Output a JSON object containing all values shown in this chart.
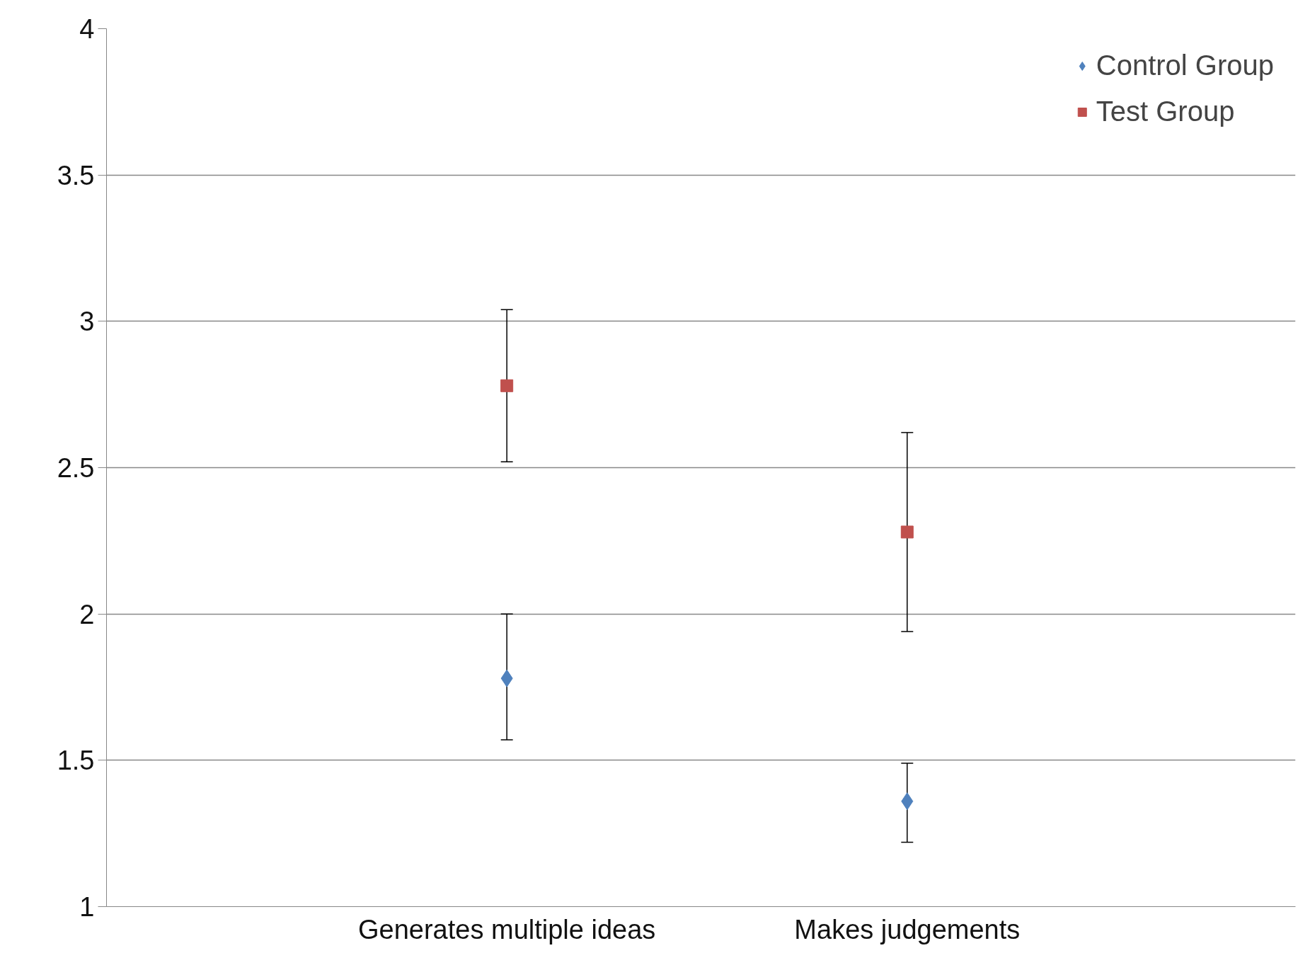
{
  "chart_data": {
    "type": "scatter",
    "categories": [
      "Generates multiple ideas",
      "Makes judgements"
    ],
    "series": [
      {
        "name": "Control Group",
        "color": "#4f81bd",
        "marker": "diamond",
        "values": [
          1.78,
          1.36
        ],
        "errors": [
          [
            1.57,
            2.0
          ],
          [
            1.22,
            1.49
          ]
        ]
      },
      {
        "name": "Test Group",
        "color": "#c0504d",
        "marker": "square",
        "values": [
          2.78,
          2.28
        ],
        "errors": [
          [
            2.52,
            3.04
          ],
          [
            1.94,
            2.62
          ]
        ]
      }
    ],
    "ylim": [
      1,
      4
    ],
    "yticks": [
      1,
      1.5,
      2,
      2.5,
      3,
      3.5,
      4
    ],
    "grid": "y",
    "legend": "top right"
  }
}
